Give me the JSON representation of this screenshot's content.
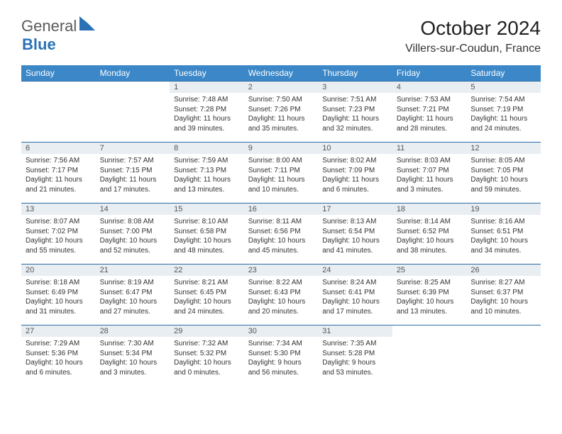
{
  "logo": {
    "part1": "General",
    "part2": "Blue"
  },
  "title": "October 2024",
  "location": "Villers-sur-Coudun, France",
  "colors": {
    "header_bg": "#3b87c8",
    "header_text": "#ffffff",
    "daynum_bg": "#e9eef3",
    "row_border": "#2e6da4",
    "logo_gray": "#5a5a5a",
    "logo_blue": "#2a72b5"
  },
  "weekdays": [
    "Sunday",
    "Monday",
    "Tuesday",
    "Wednesday",
    "Thursday",
    "Friday",
    "Saturday"
  ],
  "weeks": [
    [
      null,
      null,
      {
        "n": "1",
        "sr": "Sunrise: 7:48 AM",
        "ss": "Sunset: 7:28 PM",
        "dl": "Daylight: 11 hours and 39 minutes."
      },
      {
        "n": "2",
        "sr": "Sunrise: 7:50 AM",
        "ss": "Sunset: 7:26 PM",
        "dl": "Daylight: 11 hours and 35 minutes."
      },
      {
        "n": "3",
        "sr": "Sunrise: 7:51 AM",
        "ss": "Sunset: 7:23 PM",
        "dl": "Daylight: 11 hours and 32 minutes."
      },
      {
        "n": "4",
        "sr": "Sunrise: 7:53 AM",
        "ss": "Sunset: 7:21 PM",
        "dl": "Daylight: 11 hours and 28 minutes."
      },
      {
        "n": "5",
        "sr": "Sunrise: 7:54 AM",
        "ss": "Sunset: 7:19 PM",
        "dl": "Daylight: 11 hours and 24 minutes."
      }
    ],
    [
      {
        "n": "6",
        "sr": "Sunrise: 7:56 AM",
        "ss": "Sunset: 7:17 PM",
        "dl": "Daylight: 11 hours and 21 minutes."
      },
      {
        "n": "7",
        "sr": "Sunrise: 7:57 AM",
        "ss": "Sunset: 7:15 PM",
        "dl": "Daylight: 11 hours and 17 minutes."
      },
      {
        "n": "8",
        "sr": "Sunrise: 7:59 AM",
        "ss": "Sunset: 7:13 PM",
        "dl": "Daylight: 11 hours and 13 minutes."
      },
      {
        "n": "9",
        "sr": "Sunrise: 8:00 AM",
        "ss": "Sunset: 7:11 PM",
        "dl": "Daylight: 11 hours and 10 minutes."
      },
      {
        "n": "10",
        "sr": "Sunrise: 8:02 AM",
        "ss": "Sunset: 7:09 PM",
        "dl": "Daylight: 11 hours and 6 minutes."
      },
      {
        "n": "11",
        "sr": "Sunrise: 8:03 AM",
        "ss": "Sunset: 7:07 PM",
        "dl": "Daylight: 11 hours and 3 minutes."
      },
      {
        "n": "12",
        "sr": "Sunrise: 8:05 AM",
        "ss": "Sunset: 7:05 PM",
        "dl": "Daylight: 10 hours and 59 minutes."
      }
    ],
    [
      {
        "n": "13",
        "sr": "Sunrise: 8:07 AM",
        "ss": "Sunset: 7:02 PM",
        "dl": "Daylight: 10 hours and 55 minutes."
      },
      {
        "n": "14",
        "sr": "Sunrise: 8:08 AM",
        "ss": "Sunset: 7:00 PM",
        "dl": "Daylight: 10 hours and 52 minutes."
      },
      {
        "n": "15",
        "sr": "Sunrise: 8:10 AM",
        "ss": "Sunset: 6:58 PM",
        "dl": "Daylight: 10 hours and 48 minutes."
      },
      {
        "n": "16",
        "sr": "Sunrise: 8:11 AM",
        "ss": "Sunset: 6:56 PM",
        "dl": "Daylight: 10 hours and 45 minutes."
      },
      {
        "n": "17",
        "sr": "Sunrise: 8:13 AM",
        "ss": "Sunset: 6:54 PM",
        "dl": "Daylight: 10 hours and 41 minutes."
      },
      {
        "n": "18",
        "sr": "Sunrise: 8:14 AM",
        "ss": "Sunset: 6:52 PM",
        "dl": "Daylight: 10 hours and 38 minutes."
      },
      {
        "n": "19",
        "sr": "Sunrise: 8:16 AM",
        "ss": "Sunset: 6:51 PM",
        "dl": "Daylight: 10 hours and 34 minutes."
      }
    ],
    [
      {
        "n": "20",
        "sr": "Sunrise: 8:18 AM",
        "ss": "Sunset: 6:49 PM",
        "dl": "Daylight: 10 hours and 31 minutes."
      },
      {
        "n": "21",
        "sr": "Sunrise: 8:19 AM",
        "ss": "Sunset: 6:47 PM",
        "dl": "Daylight: 10 hours and 27 minutes."
      },
      {
        "n": "22",
        "sr": "Sunrise: 8:21 AM",
        "ss": "Sunset: 6:45 PM",
        "dl": "Daylight: 10 hours and 24 minutes."
      },
      {
        "n": "23",
        "sr": "Sunrise: 8:22 AM",
        "ss": "Sunset: 6:43 PM",
        "dl": "Daylight: 10 hours and 20 minutes."
      },
      {
        "n": "24",
        "sr": "Sunrise: 8:24 AM",
        "ss": "Sunset: 6:41 PM",
        "dl": "Daylight: 10 hours and 17 minutes."
      },
      {
        "n": "25",
        "sr": "Sunrise: 8:25 AM",
        "ss": "Sunset: 6:39 PM",
        "dl": "Daylight: 10 hours and 13 minutes."
      },
      {
        "n": "26",
        "sr": "Sunrise: 8:27 AM",
        "ss": "Sunset: 6:37 PM",
        "dl": "Daylight: 10 hours and 10 minutes."
      }
    ],
    [
      {
        "n": "27",
        "sr": "Sunrise: 7:29 AM",
        "ss": "Sunset: 5:36 PM",
        "dl": "Daylight: 10 hours and 6 minutes."
      },
      {
        "n": "28",
        "sr": "Sunrise: 7:30 AM",
        "ss": "Sunset: 5:34 PM",
        "dl": "Daylight: 10 hours and 3 minutes."
      },
      {
        "n": "29",
        "sr": "Sunrise: 7:32 AM",
        "ss": "Sunset: 5:32 PM",
        "dl": "Daylight: 10 hours and 0 minutes."
      },
      {
        "n": "30",
        "sr": "Sunrise: 7:34 AM",
        "ss": "Sunset: 5:30 PM",
        "dl": "Daylight: 9 hours and 56 minutes."
      },
      {
        "n": "31",
        "sr": "Sunrise: 7:35 AM",
        "ss": "Sunset: 5:28 PM",
        "dl": "Daylight: 9 hours and 53 minutes."
      },
      null,
      null
    ]
  ]
}
